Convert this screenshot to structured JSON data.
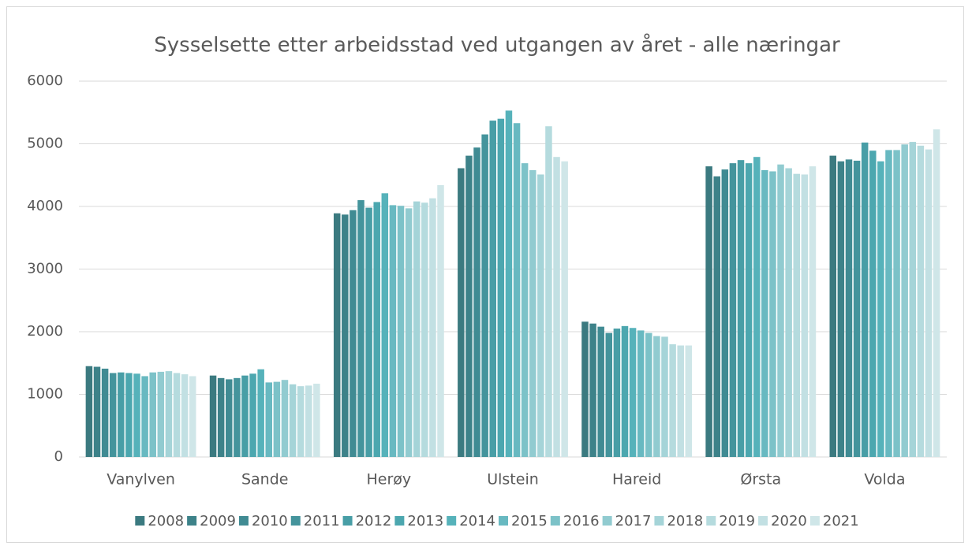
{
  "chart_data": {
    "type": "bar",
    "title": "Sysselsette etter arbeidsstad ved utgangen av året - alle næringar",
    "categories": [
      "Vanylven",
      "Sande",
      "Herøy",
      "Ulstein",
      "Hareid",
      "Ørsta",
      "Volda"
    ],
    "series": [
      {
        "name": "2008",
        "color": "#3b7a80",
        "values": [
          1450,
          1300,
          3890,
          4610,
          2160,
          4640,
          4810
        ]
      },
      {
        "name": "2009",
        "color": "#3d8289",
        "values": [
          1440,
          1260,
          3870,
          4810,
          2130,
          4480,
          4720
        ]
      },
      {
        "name": "2010",
        "color": "#408b93",
        "values": [
          1410,
          1240,
          3940,
          4940,
          2080,
          4590,
          4750
        ]
      },
      {
        "name": "2011",
        "color": "#44949c",
        "values": [
          1340,
          1260,
          4100,
          5150,
          1980,
          4690,
          4730
        ]
      },
      {
        "name": "2012",
        "color": "#489ea6",
        "values": [
          1350,
          1300,
          3980,
          5370,
          2050,
          4740,
          5020
        ]
      },
      {
        "name": "2013",
        "color": "#4ca7af",
        "values": [
          1340,
          1330,
          4070,
          5400,
          2090,
          4690,
          4890
        ]
      },
      {
        "name": "2014",
        "color": "#56b2ba",
        "values": [
          1330,
          1400,
          4210,
          5530,
          2060,
          4790,
          4720
        ]
      },
      {
        "name": "2015",
        "color": "#68b9c1",
        "values": [
          1290,
          1190,
          4020,
          5330,
          2020,
          4580,
          4900
        ]
      },
      {
        "name": "2016",
        "color": "#7cc2c8",
        "values": [
          1350,
          1200,
          4010,
          4690,
          1980,
          4560,
          4900
        ]
      },
      {
        "name": "2017",
        "color": "#91cbd0",
        "values": [
          1360,
          1230,
          3970,
          4580,
          1930,
          4670,
          4990
        ]
      },
      {
        "name": "2018",
        "color": "#a5d4d8",
        "values": [
          1370,
          1160,
          4080,
          4510,
          1920,
          4610,
          5030
        ]
      },
      {
        "name": "2019",
        "color": "#b5dbde",
        "values": [
          1340,
          1130,
          4060,
          5280,
          1800,
          4520,
          4970
        ]
      },
      {
        "name": "2020",
        "color": "#c2e0e3",
        "values": [
          1320,
          1140,
          4130,
          4790,
          1780,
          4510,
          4910
        ]
      },
      {
        "name": "2021",
        "color": "#cfe6e8",
        "values": [
          1290,
          1170,
          4340,
          4720,
          1780,
          4640,
          5230
        ]
      }
    ],
    "ylim": [
      0,
      6000
    ],
    "yticks": [
      0,
      1000,
      2000,
      3000,
      4000,
      5000,
      6000
    ],
    "grid": true,
    "legend": "bottom"
  }
}
